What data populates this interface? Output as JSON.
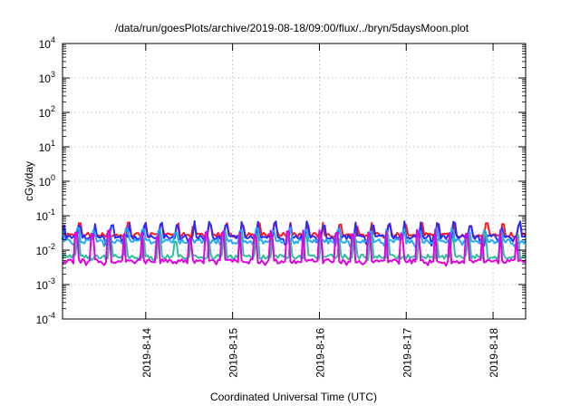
{
  "chart_data": {
    "type": "line",
    "title": "/data/run/goesPlots/archive/2019-08-18/09:00/flux/../bryn/5daysMoon.plot",
    "xlabel": "Coordinated Universal Time (UTC)",
    "ylabel": "cGy/day",
    "yscale": "log",
    "ylim": [
      0.0001,
      10000
    ],
    "xlim": [
      "2019-08-13T01:00",
      "2019-08-18T09:00"
    ],
    "grid": true,
    "x_ticks": [
      "2019-8-14",
      "2019-8-15",
      "2019-8-16",
      "2019-8-17",
      "2019-8-18"
    ],
    "y_ticks": [
      {
        "base": "10",
        "exp": "-4"
      },
      {
        "base": "10",
        "exp": "-3"
      },
      {
        "base": "10",
        "exp": "-2"
      },
      {
        "base": "10",
        "exp": "-1"
      },
      {
        "base": "10",
        "exp": "0"
      },
      {
        "base": "10",
        "exp": "1"
      },
      {
        "base": "10",
        "exp": "2"
      },
      {
        "base": "10",
        "exp": "3"
      },
      {
        "base": "10",
        "exp": "4"
      }
    ],
    "series": [
      {
        "color": "#ff1a1a",
        "baseline": 0.028,
        "spike_max": 0.065,
        "dip_min": 0.02,
        "period_hours": 1.5
      },
      {
        "color": "#2b2bff",
        "baseline": 0.024,
        "spike_max": 0.07,
        "dip_min": 0.013,
        "period_hours": 1.5
      },
      {
        "color": "#22aaff",
        "baseline": 0.018,
        "spike_max": 0.045,
        "dip_min": 0.012,
        "period_hours": 1.5
      },
      {
        "color": "#2fbf9f",
        "baseline": 0.0065,
        "spike_max": 0.03,
        "dip_min": 0.005,
        "period_hours": 1.5
      },
      {
        "color": "#e000e0",
        "baseline": 0.0048,
        "spike_max": 0.04,
        "dip_min": 0.0035,
        "period_hours": 1.5
      }
    ]
  }
}
